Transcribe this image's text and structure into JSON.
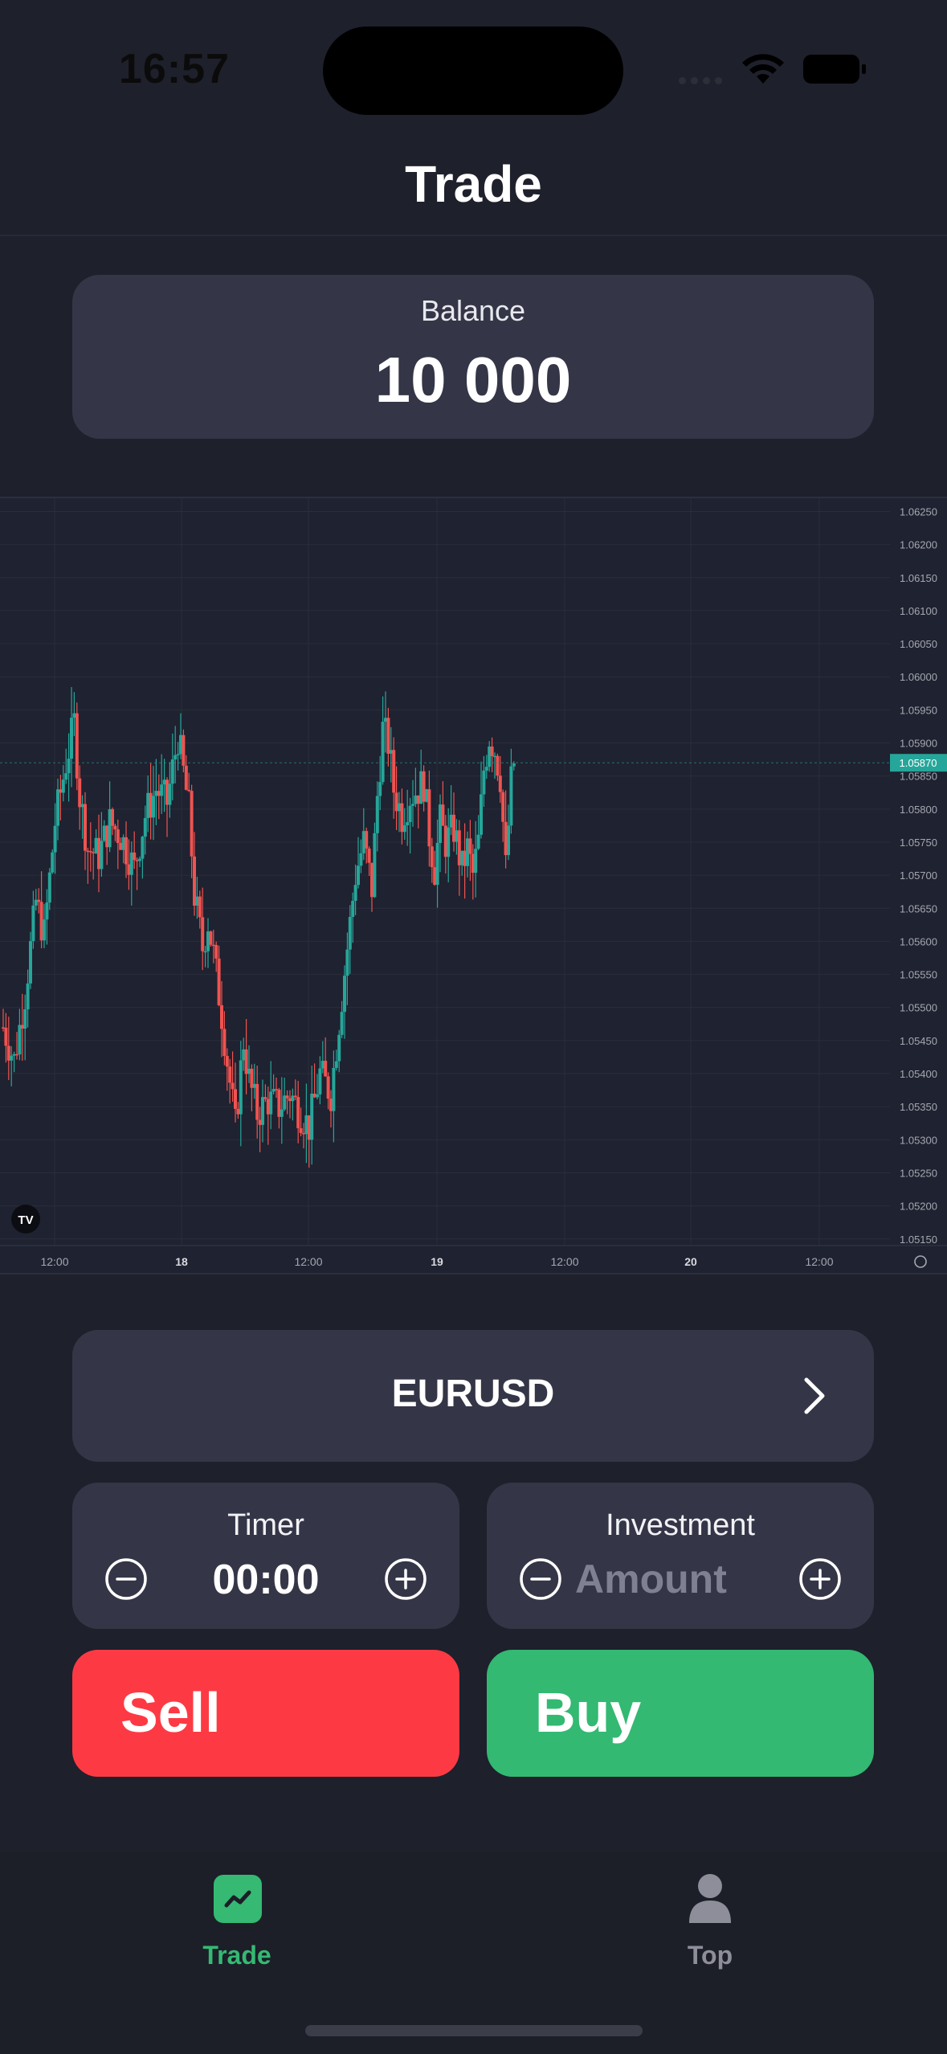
{
  "status": {
    "time": "16:57"
  },
  "header": {
    "title": "Trade"
  },
  "balance": {
    "label": "Balance",
    "value": "10 000"
  },
  "chart_data": {
    "type": "candlestick",
    "symbol": "EURUSD",
    "y_ticks": [
      "1.06250",
      "1.06200",
      "1.06150",
      "1.06100",
      "1.06050",
      "1.06000",
      "1.05950",
      "1.05900",
      "1.05850",
      "1.05800",
      "1.05750",
      "1.05700",
      "1.05650",
      "1.05600",
      "1.05550",
      "1.05500",
      "1.05450",
      "1.05400",
      "1.05350",
      "1.05300",
      "1.05250",
      "1.05200",
      "1.05150"
    ],
    "ylim": [
      1.0514,
      1.0627
    ],
    "x_ticks": [
      "12:00",
      "18",
      "12:00",
      "19",
      "12:00",
      "20",
      "12:00"
    ],
    "current_price": "1.05870",
    "colors": {
      "up": "#26a69a",
      "down": "#ef5350",
      "background": "#1f2230",
      "grid": "#2a2d3a"
    },
    "grid": true,
    "close_path": [
      [
        0,
        1.0547
      ],
      [
        8,
        1.0542
      ],
      [
        16,
        1.0552
      ],
      [
        24,
        1.0566
      ],
      [
        30,
        1.0561
      ],
      [
        38,
        1.0578
      ],
      [
        46,
        1.0587
      ],
      [
        52,
        1.0593
      ],
      [
        56,
        1.0582
      ],
      [
        62,
        1.0574
      ],
      [
        70,
        1.0573
      ],
      [
        78,
        1.0578
      ],
      [
        86,
        1.0576
      ],
      [
        96,
        1.0571
      ],
      [
        104,
        1.0579
      ],
      [
        112,
        1.0583
      ],
      [
        120,
        1.0581
      ],
      [
        128,
        1.0591
      ],
      [
        136,
        1.058
      ],
      [
        140,
        1.0567
      ],
      [
        146,
        1.0559
      ],
      [
        150,
        1.0563
      ],
      [
        154,
        1.0558
      ],
      [
        160,
        1.0549
      ],
      [
        164,
        1.0542
      ],
      [
        170,
        1.0532
      ],
      [
        176,
        1.0545
      ],
      [
        180,
        1.0539
      ],
      [
        186,
        1.0534
      ],
      [
        194,
        1.0536
      ],
      [
        202,
        1.0535
      ],
      [
        210,
        1.0537
      ],
      [
        218,
        1.0534
      ],
      [
        224,
        1.0532
      ],
      [
        232,
        1.054
      ],
      [
        240,
        1.0537
      ],
      [
        246,
        1.0548
      ],
      [
        252,
        1.0559
      ],
      [
        258,
        1.057
      ],
      [
        264,
        1.0575
      ],
      [
        270,
        1.0568
      ],
      [
        274,
        1.0582
      ],
      [
        278,
        1.0592
      ],
      [
        282,
        1.059
      ],
      [
        286,
        1.0583
      ],
      [
        292,
        1.0579
      ],
      [
        298,
        1.0582
      ],
      [
        304,
        1.0583
      ],
      [
        308,
        1.0584
      ],
      [
        312,
        1.0576
      ],
      [
        316,
        1.0571
      ],
      [
        320,
        1.0578
      ],
      [
        324,
        1.0575
      ],
      [
        330,
        1.0577
      ],
      [
        336,
        1.0571
      ],
      [
        340,
        1.0574
      ],
      [
        344,
        1.057
      ],
      [
        348,
        1.0575
      ],
      [
        352,
        1.0586
      ],
      [
        356,
        1.0591
      ],
      [
        360,
        1.0589
      ],
      [
        364,
        1.0585
      ],
      [
        368,
        1.0571
      ],
      [
        372,
        1.0584
      ],
      [
        374,
        1.0587
      ]
    ],
    "logo": "TV"
  },
  "pair": {
    "name": "EURUSD"
  },
  "timer": {
    "label": "Timer",
    "value": "00:00"
  },
  "investment": {
    "label": "Investment",
    "placeholder": "Amount"
  },
  "actions": {
    "sell": "Sell",
    "buy": "Buy"
  },
  "tabs": [
    {
      "label": "Trade",
      "icon": "chart-trend-icon",
      "active": true
    },
    {
      "label": "Top",
      "icon": "person-icon",
      "active": false
    }
  ]
}
